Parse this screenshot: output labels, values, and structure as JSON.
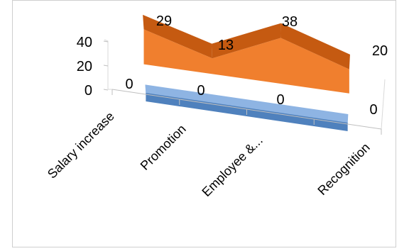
{
  "chart_data": {
    "type": "area",
    "view": "3d-perspective",
    "categories": [
      "Salary increase",
      "Promotion",
      "Employee &...",
      "Recognition"
    ],
    "series": [
      {
        "name": "",
        "values": [
          0,
          0,
          0,
          0
        ],
        "color": "#4f81bd"
      },
      {
        "name": "",
        "values": [
          29,
          13,
          38,
          20
        ],
        "color": "#f07f2e"
      }
    ],
    "yticks": [
      "0",
      "20",
      "40"
    ],
    "ylim": [
      0,
      40
    ],
    "grid": false,
    "legend": "none"
  }
}
